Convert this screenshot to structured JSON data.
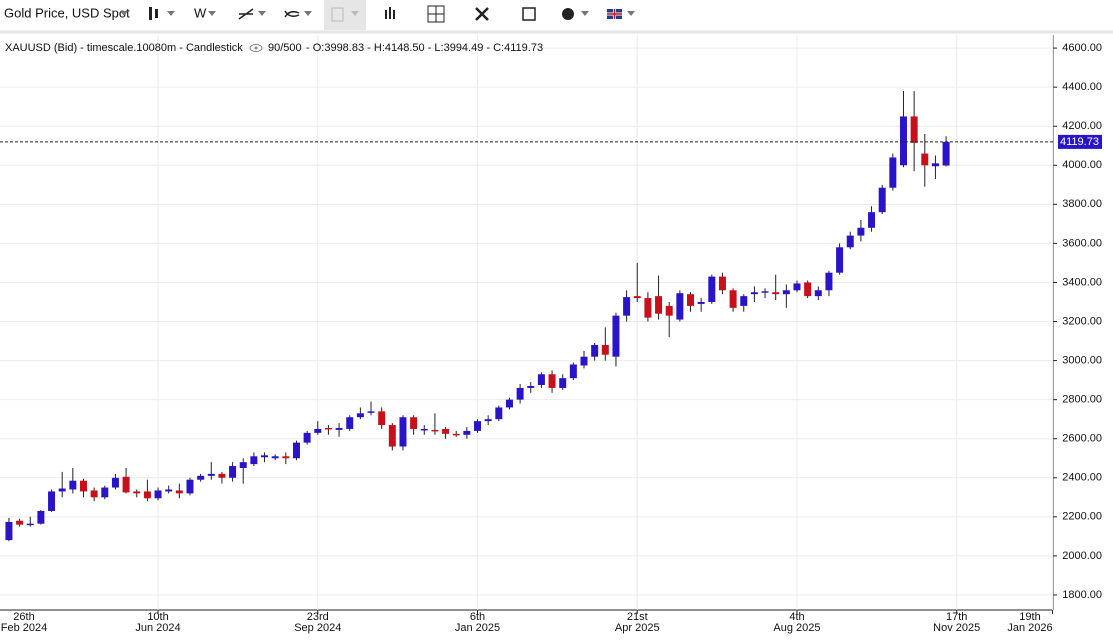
{
  "toolbar": {
    "instrument": "Gold Price, USD Spot",
    "interval": "W"
  },
  "chart_data": {
    "type": "candlestick",
    "legend_text": "XAUUSD (Bid) - timescale.10080m - Candlestick",
    "legend_count": "90/500",
    "legend_ohlc": "- O:3998.83 - H:4148.50 - L:3994.49 - C:4119.73",
    "up_color": "#2a14c9",
    "down_color": "#c8101a",
    "wick_color": "#222222",
    "grid": true,
    "open": [
      2081,
      2180,
      2160,
      2165,
      2230,
      2330,
      2340,
      2385,
      2335,
      2300,
      2350,
      2405,
      2330,
      2330,
      2295,
      2330,
      2335,
      2320,
      2390,
      2410,
      2420,
      2400,
      2450,
      2470,
      2505,
      2500,
      2510,
      2500,
      2580,
      2630,
      2655,
      2645,
      2650,
      2710,
      2735,
      2740,
      2670,
      2560,
      2710,
      2645,
      2645,
      2650,
      2625,
      2620,
      2640,
      2690,
      2700,
      2760,
      2800,
      2860,
      2875,
      2930,
      2860,
      2910,
      2975,
      3020,
      3080,
      3020,
      3230,
      3330,
      3320,
      3330,
      3280,
      3210,
      3340,
      3290,
      3300,
      3430,
      3360,
      3280,
      3340,
      3350,
      3350,
      3340,
      3360,
      3400,
      3330,
      3360,
      3450,
      3580,
      3640,
      3680,
      3760,
      3885,
      4000,
      4250,
      4060,
      3995,
      3998.83
    ],
    "high": [
      2195,
      2190,
      2200,
      2235,
      2340,
      2430,
      2450,
      2395,
      2350,
      2360,
      2420,
      2450,
      2340,
      2390,
      2350,
      2360,
      2370,
      2400,
      2420,
      2480,
      2430,
      2480,
      2500,
      2530,
      2530,
      2520,
      2530,
      2590,
      2640,
      2690,
      2670,
      2680,
      2720,
      2760,
      2790,
      2760,
      2680,
      2720,
      2720,
      2670,
      2730,
      2660,
      2640,
      2660,
      2700,
      2720,
      2770,
      2810,
      2880,
      2890,
      2940,
      2950,
      2930,
      2990,
      3050,
      3090,
      3170,
      3245,
      3360,
      3500,
      3350,
      3435,
      3300,
      3360,
      3350,
      3320,
      3440,
      3450,
      3370,
      3340,
      3380,
      3370,
      3440,
      3390,
      3410,
      3410,
      3380,
      3460,
      3600,
      3660,
      3720,
      3790,
      3900,
      4060,
      4380,
      4380,
      4160,
      4050,
      4148.5
    ],
    "low": [
      2075,
      2150,
      2150,
      2160,
      2225,
      2300,
      2320,
      2300,
      2280,
      2290,
      2340,
      2320,
      2300,
      2280,
      2285,
      2320,
      2295,
      2310,
      2380,
      2390,
      2370,
      2380,
      2370,
      2460,
      2480,
      2490,
      2470,
      2490,
      2570,
      2620,
      2620,
      2610,
      2640,
      2700,
      2720,
      2650,
      2540,
      2540,
      2620,
      2620,
      2620,
      2600,
      2610,
      2600,
      2630,
      2670,
      2690,
      2750,
      2780,
      2835,
      2860,
      2835,
      2850,
      2900,
      2960,
      3000,
      3000,
      2970,
      3200,
      3300,
      3200,
      3210,
      3120,
      3200,
      3250,
      3250,
      3290,
      3340,
      3250,
      3250,
      3300,
      3320,
      3310,
      3270,
      3350,
      3320,
      3310,
      3330,
      3440,
      3570,
      3610,
      3660,
      3750,
      3870,
      3990,
      3970,
      3890,
      3930,
      3994.49
    ],
    "close": [
      2174,
      2160,
      2165,
      2230,
      2330,
      2345,
      2385,
      2330,
      2300,
      2350,
      2400,
      2325,
      2320,
      2295,
      2335,
      2340,
      2320,
      2390,
      2410,
      2420,
      2400,
      2460,
      2480,
      2510,
      2515,
      2510,
      2500,
      2580,
      2630,
      2650,
      2650,
      2655,
      2710,
      2730,
      2740,
      2670,
      2560,
      2710,
      2650,
      2650,
      2640,
      2625,
      2620,
      2640,
      2690,
      2700,
      2760,
      2800,
      2860,
      2870,
      2930,
      2860,
      2910,
      2980,
      3020,
      3080,
      3030,
      3230,
      3325,
      3320,
      3220,
      3240,
      3230,
      3345,
      3280,
      3300,
      3430,
      3360,
      3270,
      3330,
      3350,
      3355,
      3340,
      3360,
      3395,
      3330,
      3360,
      3450,
      3580,
      3640,
      3680,
      3760,
      3885,
      4040,
      4250,
      4115,
      4000,
      4010,
      4119.73
    ],
    "last_price": {
      "value": 4119.73,
      "label": "4119.73"
    },
    "ylim": [
      1723,
      4667
    ],
    "yticks": [
      {
        "value": 1800,
        "label": "1800.00"
      },
      {
        "value": 2000,
        "label": "2000.00"
      },
      {
        "value": 2200,
        "label": "2200.00"
      },
      {
        "value": 2400,
        "label": "2400.00"
      },
      {
        "value": 2600,
        "label": "2600.00"
      },
      {
        "value": 2800,
        "label": "2800.00"
      },
      {
        "value": 3000,
        "label": "3000.00"
      },
      {
        "value": 3200,
        "label": "3200.00"
      },
      {
        "value": 3400,
        "label": "3400.00"
      },
      {
        "value": 3600,
        "label": "3600.00"
      },
      {
        "value": 3800,
        "label": "3800.00"
      },
      {
        "value": 4000,
        "label": "4000.00"
      },
      {
        "value": 4200,
        "label": "4200.00"
      },
      {
        "value": 4400,
        "label": "4400.00"
      },
      {
        "value": 4600,
        "label": "4600.00"
      }
    ],
    "xlim": [
      -0.84,
      98.04
    ],
    "xticks": [
      {
        "value": -1,
        "label": [
          "26th",
          "Feb 2024"
        ]
      },
      {
        "value": 14,
        "label": [
          "10th",
          "Jun 2024"
        ]
      },
      {
        "value": 29,
        "label": [
          "23rd",
          "Sep 2024"
        ]
      },
      {
        "value": 44,
        "label": [
          "6th",
          "Jan 2025"
        ]
      },
      {
        "value": 59,
        "label": [
          "21st",
          "Apr 2025"
        ]
      },
      {
        "value": 74,
        "label": [
          "4th",
          "Aug 2025"
        ]
      },
      {
        "value": 89,
        "label": [
          "17th",
          "Nov 2025"
        ]
      },
      {
        "value": 98,
        "label": [
          "19th",
          "Jan 2026"
        ]
      }
    ]
  }
}
